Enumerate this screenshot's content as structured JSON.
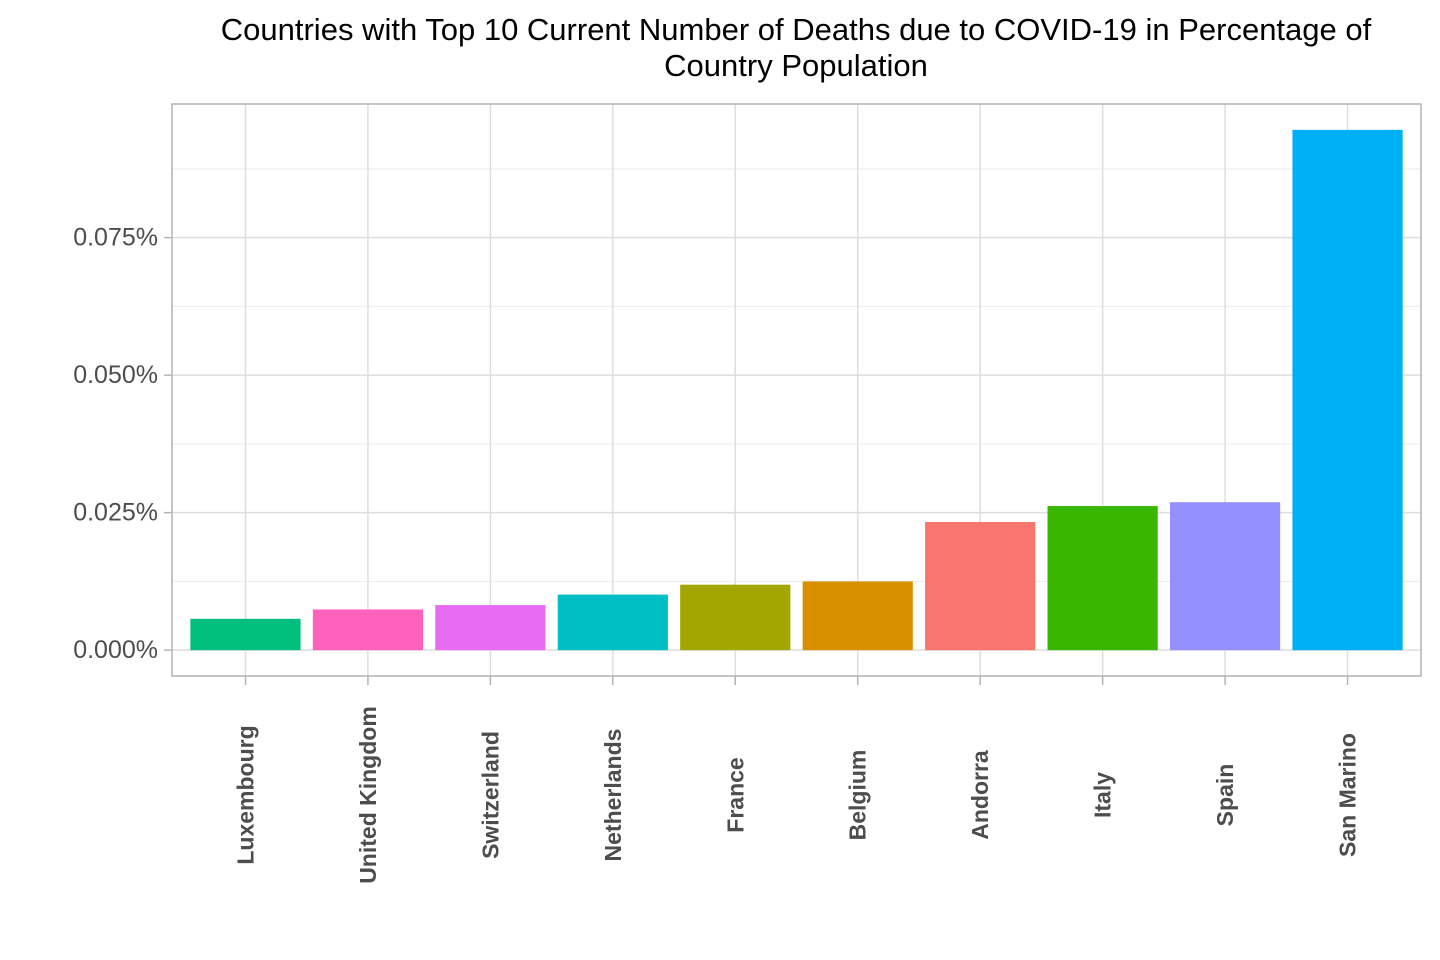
{
  "chart_data": {
    "type": "bar",
    "title_lines": [
      "Countries with Top 10 Current Number of Deaths due to COVID-19 in Percentage of",
      "Country Population"
    ],
    "xlabel": "",
    "ylabel": "",
    "categories": [
      "Luxembourg",
      "United Kingdom",
      "Switzerland",
      "Netherlands",
      "France",
      "Belgium",
      "Andorra",
      "Italy",
      "Spain",
      "San Marino"
    ],
    "values": [
      0.0057,
      0.0074,
      0.0082,
      0.0101,
      0.0119,
      0.0125,
      0.0233,
      0.0262,
      0.0269,
      0.0946
    ],
    "colors": [
      "#00BF7D",
      "#FF62BC",
      "#E76BF3",
      "#00BFC4",
      "#A3A500",
      "#D89000",
      "#F8766D",
      "#39B600",
      "#9590FF",
      "#00B0F6"
    ],
    "y_ticks": [
      0,
      0.025,
      0.05,
      0.075
    ],
    "y_tick_labels": [
      "0.000%",
      "0.025%",
      "0.050%",
      "0.075%"
    ],
    "ylim": [
      -0.0047,
      0.0993
    ],
    "grid": true,
    "legend": "none"
  }
}
